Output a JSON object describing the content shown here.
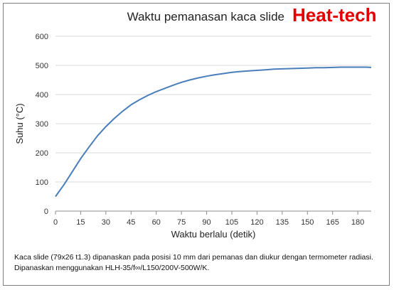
{
  "brand": "Heat-tech",
  "chart_data": {
    "type": "line",
    "title": "Waktu pemanasan kaca slide",
    "xlabel": "Waktu berlalu (detik)",
    "ylabel": "Suhu (°C)",
    "xlim": [
      0,
      188
    ],
    "ylim": [
      0,
      600
    ],
    "x_ticks": [
      0,
      15,
      30,
      45,
      60,
      75,
      90,
      105,
      120,
      135,
      150,
      165,
      180
    ],
    "y_ticks": [
      0,
      100,
      200,
      300,
      400,
      500,
      600
    ],
    "grid": "horizontal",
    "series": [
      {
        "color": "#4a7ebb",
        "x": [
          0,
          5,
          10,
          15,
          20,
          25,
          30,
          35,
          40,
          45,
          50,
          55,
          60,
          65,
          70,
          75,
          80,
          85,
          90,
          95,
          100,
          105,
          110,
          115,
          120,
          125,
          130,
          135,
          140,
          145,
          150,
          155,
          160,
          165,
          170,
          175,
          180,
          185,
          188
        ],
        "y": [
          50,
          90,
          135,
          180,
          220,
          258,
          290,
          318,
          343,
          365,
          382,
          397,
          410,
          421,
          432,
          442,
          450,
          457,
          463,
          468,
          472,
          476,
          479,
          481,
          483,
          485,
          487,
          488,
          489,
          490,
          491,
          492,
          492,
          493,
          494,
          494,
          494,
          494,
          493
        ]
      }
    ]
  },
  "caption": {
    "line1": "Kaca slide (79x26 t1.3) dipanaskan pada posisi 10 mm dari pemanas dan diukur dengan termometer radiasi.",
    "line2": "Dipanaskan menggunakan HLH-35/f∞/L150/200V-500W/K."
  }
}
